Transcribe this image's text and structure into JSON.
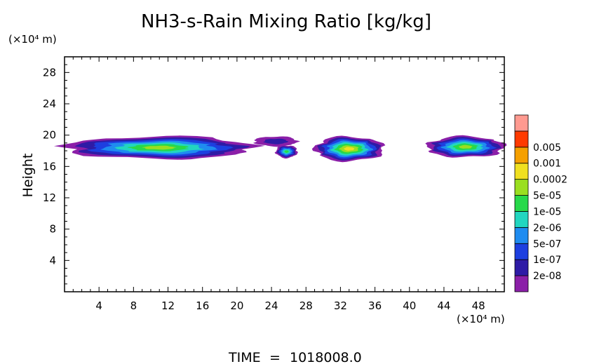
{
  "chart_data": {
    "type": "heatmap",
    "title": "NH3-s-Rain Mixing Ratio [kg/kg]",
    "xlabel": "",
    "ylabel": "Height",
    "x_unit": "(×10⁴ m)",
    "y_unit": "(×10⁴ m)",
    "xlim": [
      0,
      51
    ],
    "ylim": [
      0,
      30
    ],
    "xticks": [
      4,
      8,
      12,
      16,
      20,
      24,
      28,
      32,
      36,
      40,
      44,
      48
    ],
    "yticks": [
      4,
      8,
      12,
      16,
      20,
      24,
      28
    ],
    "color_levels": [
      "2e-08",
      "1e-07",
      "5e-07",
      "2e-06",
      "1e-05",
      "5e-05",
      "0.0002",
      "0.001",
      "0.005"
    ],
    "colors": [
      "#8b1fa8",
      "#2e1ba6",
      "#1d3fe0",
      "#1f8cf0",
      "#22d6c0",
      "#27d94a",
      "#9adf20",
      "#f0e020",
      "#f5a000",
      "#ff3a00",
      "#ff9a90"
    ],
    "cloud_layers": [
      {
        "x_start": 0.0,
        "x_end": 22.0,
        "y_bottom": 16.8,
        "y_top": 20.0,
        "core_level": "5e-05"
      },
      {
        "x_start": 22.0,
        "x_end": 27.0,
        "y_bottom": 18.5,
        "y_top": 19.9,
        "core_level": "2e-08"
      },
      {
        "x_start": 24.5,
        "x_end": 27.0,
        "y_bottom": 17.0,
        "y_top": 18.8,
        "core_level": "1e-05"
      },
      {
        "x_start": 29.0,
        "x_end": 37.0,
        "y_bottom": 16.5,
        "y_top": 20.0,
        "core_level": "0.0002"
      },
      {
        "x_start": 42.0,
        "x_end": 51.0,
        "y_bottom": 17.0,
        "y_top": 20.0,
        "core_level": "5e-05"
      }
    ]
  },
  "footer": {
    "time_label": "TIME",
    "equals": "=",
    "time_value": "1018008.0"
  },
  "colors": {
    "axis": "#000000",
    "background": "#ffffff"
  }
}
